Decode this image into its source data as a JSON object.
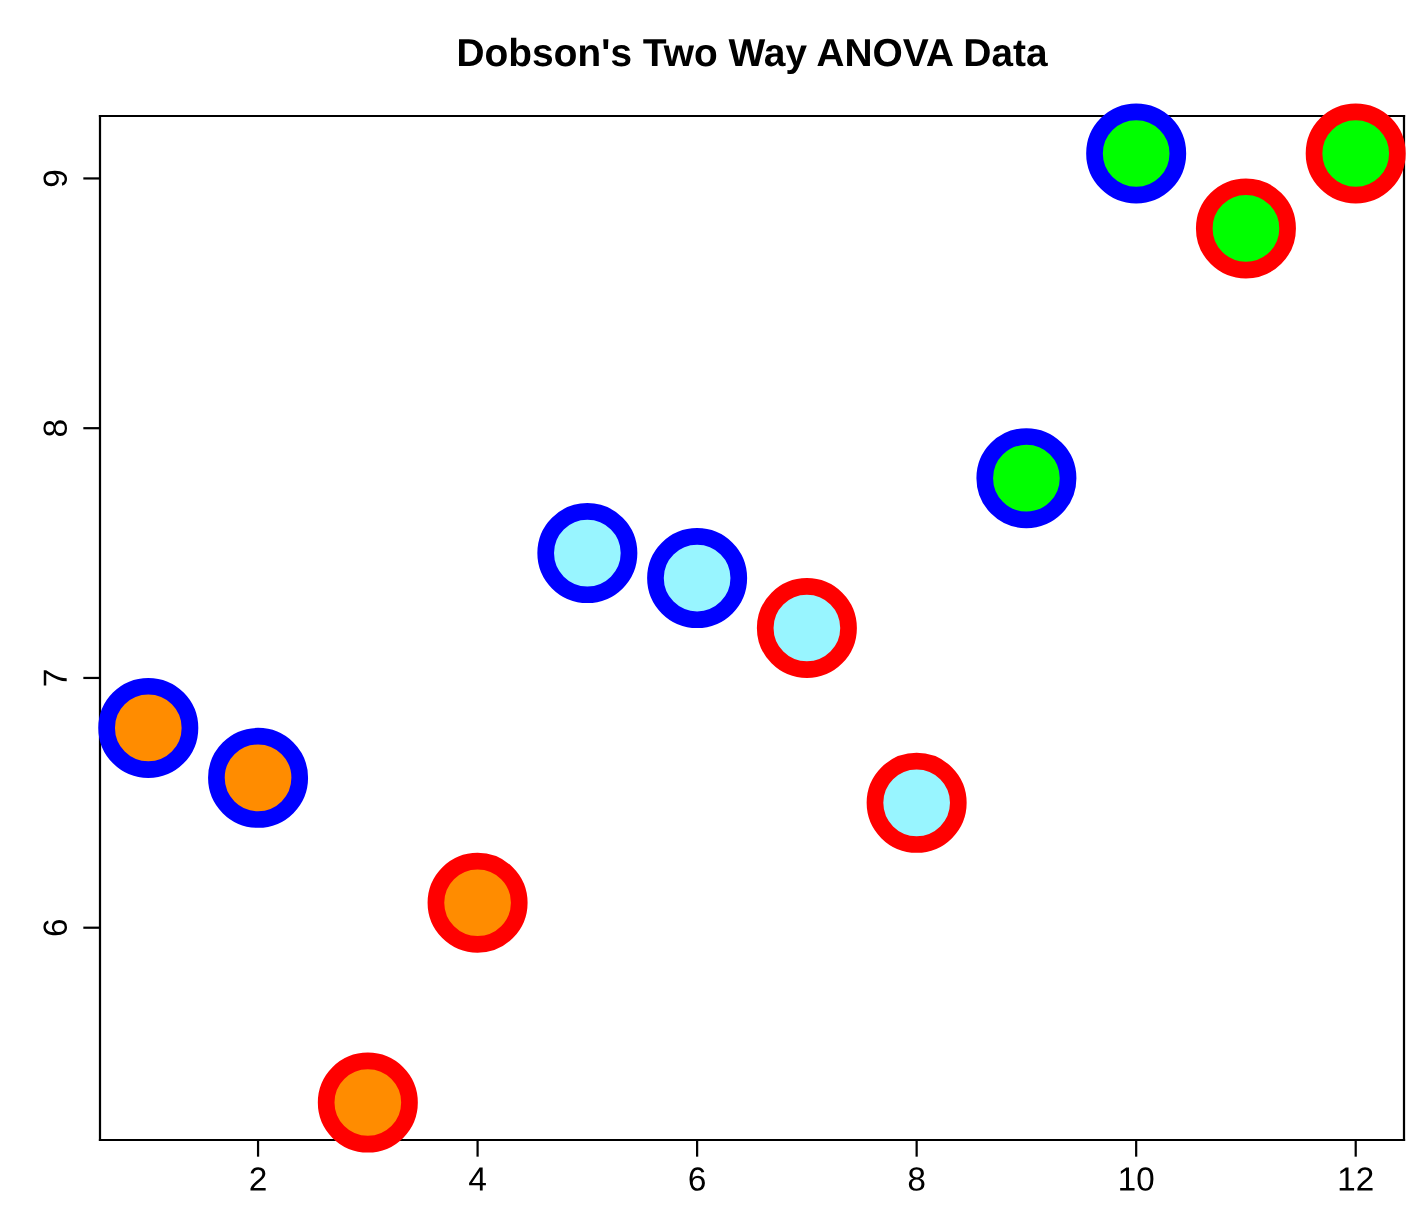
{
  "chart_data": {
    "type": "scatter",
    "title": "Dobson's Two Way ANOVA Data",
    "series": [
      {
        "color": "#0000ff",
        "x": [
          1,
          2,
          5,
          6,
          9,
          10
        ],
        "values": [
          6.8,
          6.6,
          7.5,
          7.4,
          7.8,
          9.1
        ],
        "colors": [
          "#ff8c00",
          "#ff8c00",
          "#98f5ff",
          "#98f5ff",
          "#00ff00",
          "#00ff00"
        ]
      },
      {
        "color": "#ff0000",
        "x": [
          3,
          4,
          7,
          8,
          11,
          12
        ],
        "values": [
          5.3,
          6.1,
          7.2,
          6.5,
          8.8,
          9.1
        ],
        "colors": [
          "#ff8c00",
          "#ff8c00",
          "#98f5ff",
          "#98f5ff",
          "#00ff00",
          "#00ff00"
        ]
      }
    ],
    "xlim": [
      0.56,
      12.44
    ],
    "ylim": [
      5.15,
      9.25
    ],
    "xticks": [
      2,
      4,
      6,
      8,
      10,
      12
    ],
    "yticks": [
      6,
      7,
      8,
      9
    ],
    "marker": "circle",
    "grid": false,
    "legend": false
  }
}
